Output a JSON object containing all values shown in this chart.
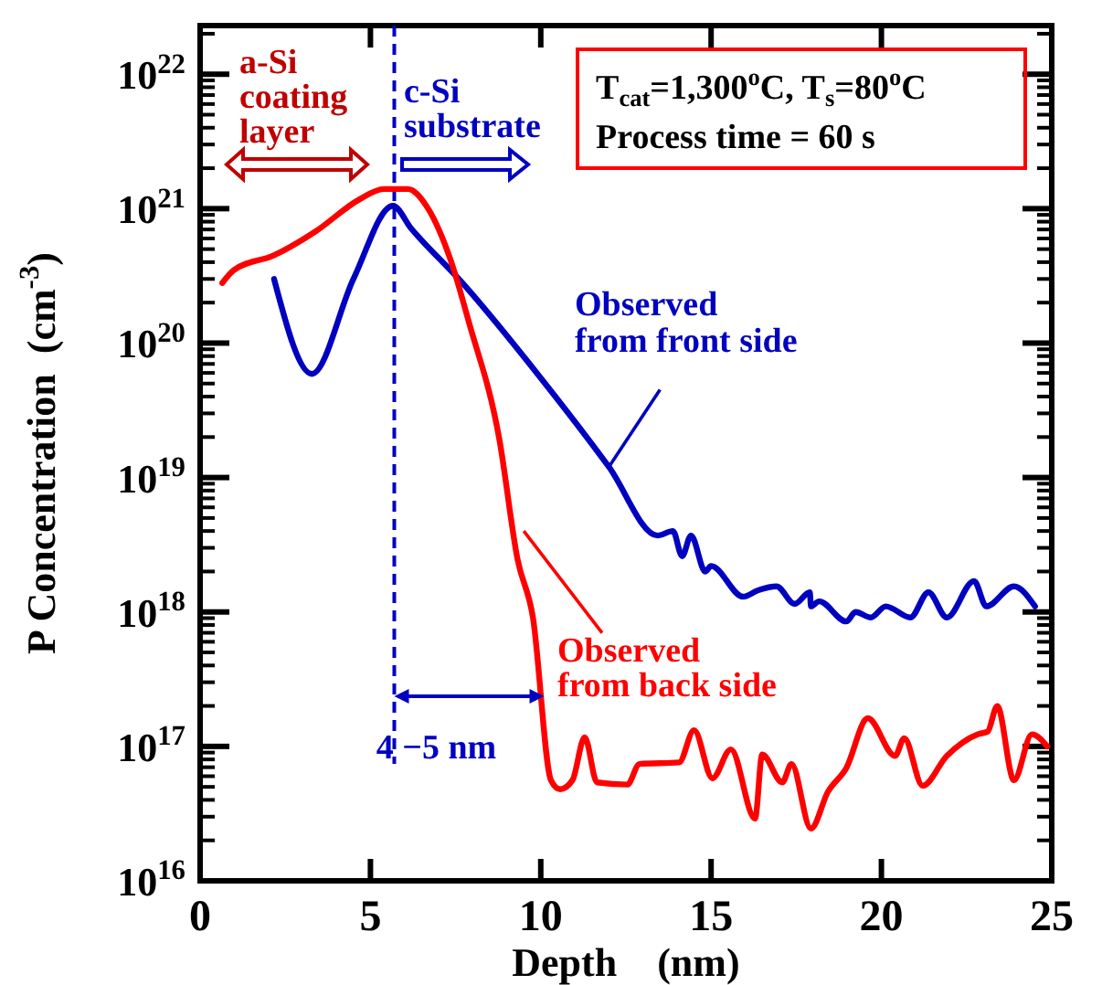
{
  "chart_data": {
    "type": "line",
    "xlabel": "Depth    (nm)",
    "ylabel": "P Concentration  (cm$^{-3}$)",
    "log": "y",
    "xlim": [
      0,
      25
    ],
    "xticks": [
      0,
      5,
      10,
      15,
      20,
      25
    ],
    "ylim": [
      1e+16,
      2.3e+22
    ],
    "yticks": [
      {
        "value": 1e+16,
        "label": "10$^{16}$"
      },
      {
        "value": 1e+17,
        "label": "10$^{17}$"
      },
      {
        "value": 1e+18,
        "label": "10$^{18}$"
      },
      {
        "value": 1e+19,
        "label": "10$^{19}$"
      },
      {
        "value": 1e+20,
        "label": "10$^{20}$"
      },
      {
        "value": 1e+21,
        "label": "10$^{21}$"
      },
      {
        "value": 1e+22,
        "label": "10$^{22}$"
      }
    ],
    "grid": false,
    "line_style": "solid",
    "series": [
      {
        "name": "Observed from front side",
        "color": "#0000c0",
        "x": [
          2.17,
          3.28,
          4.5,
          5.66,
          6.2,
          7.7,
          10,
          12,
          13.43,
          13.88,
          14.15,
          14.41,
          14.83,
          15.0,
          15.94,
          16.38,
          16.92,
          17.45,
          17.9,
          17.93,
          18.17,
          18.97,
          19.24,
          19.69,
          20.13,
          20.85,
          21.38,
          21.92,
          22.72,
          23.08,
          23.89,
          24.51
        ],
        "values": [
          3e+20,
          5.9e+19,
          3e+20,
          1.05e+21,
          7.1e+20,
          2.8e+20,
          5.5e+19,
          1.2e+19,
          3.7e+18,
          4e+18,
          2.6e+18,
          3.7e+18,
          2e+18,
          2.2e+18,
          1.3e+18,
          1.45e+18,
          1.55e+18,
          1.15e+18,
          1.4e+18,
          1.1e+18,
          1.2e+18,
          8.5e+17,
          1e+18,
          9.1e+17,
          1.1e+18,
          9.1e+17,
          1.4e+18,
          9.1e+17,
          1.7e+18,
          1.1e+18,
          1.55e+18,
          1.1e+18
        ]
      },
      {
        "name": "Observed from back side",
        "color": "#ff0000",
        "x": [
          0.65,
          1.0,
          2.17,
          3.4,
          4.67,
          5.39,
          6.1,
          6.64,
          7.36,
          7.9,
          8.78,
          9.32,
          9.77,
          10.3,
          10.57,
          10.93,
          11.29,
          11.65,
          12.54,
          12.9,
          14.06,
          14.5,
          15.04,
          15.58,
          16.29,
          16.5,
          17.09,
          17.36,
          17.93,
          18.43,
          18.97,
          19.6,
          20.4,
          20.67,
          21.21,
          21.92,
          22.82,
          23.12,
          23.4,
          23.89,
          24.42,
          24.87
        ],
        "values": [
          2.8e+20,
          3.5e+20,
          4.5e+20,
          6.8e+20,
          1.17e+21,
          1.4e+21,
          1.4e+21,
          1.05e+21,
          4.1e+20,
          1.4e+20,
          1.95e+19,
          2.45e+18,
          9.1e+17,
          5.6e+16,
          4.8e+16,
          5.6e+16,
          1.17e+17,
          5.4e+16,
          5.2e+16,
          7.4e+16,
          7.6e+16,
          1.32e+17,
          5.8e+16,
          9.5e+16,
          2.9e+16,
          8.7e+16,
          5.4e+16,
          7.4e+16,
          2.45e+16,
          4.6e+16,
          6.9e+16,
          1.62e+17,
          8.5e+16,
          1.15e+17,
          5.1e+16,
          8.5e+16,
          1.23e+17,
          1.29e+17,
          2e+17,
          5.6e+16,
          1.23e+17,
          1e+17
        ]
      }
    ],
    "ref_lines": [
      {
        "axis": "x",
        "value": 5.7,
        "color": "#0000c0",
        "line_style": "dashed"
      }
    ],
    "annotations": [
      "a-Si coating layer",
      "c-Si substrate",
      "T$_{cat}$=1,300$^{o}$C, T$_{s}$=80$^{o}$C",
      "Process time = 60 s",
      "4 −5 nm"
    ]
  }
}
